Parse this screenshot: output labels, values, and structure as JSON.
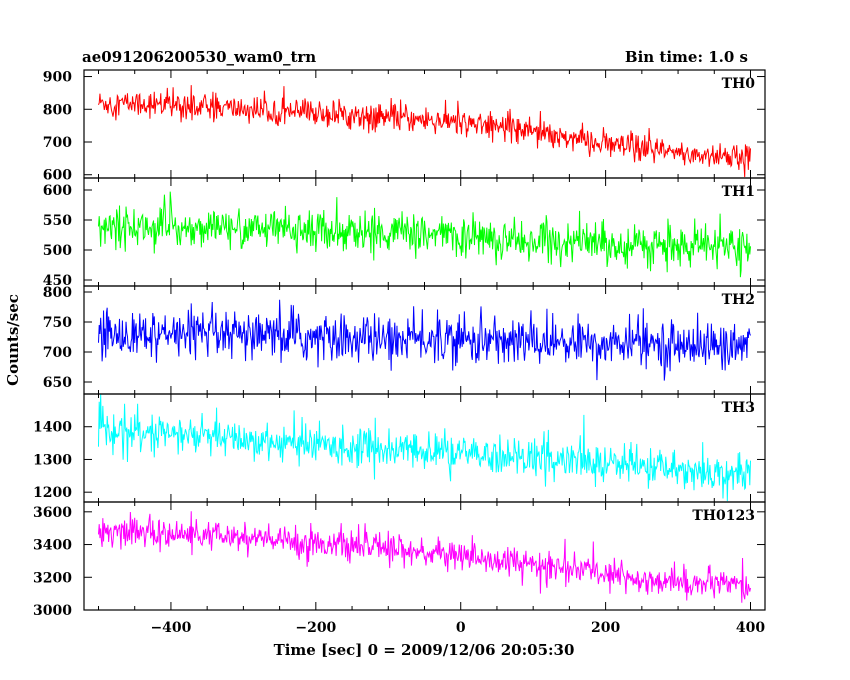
{
  "chart_data": {
    "type": "line",
    "title": "ae091206200530_wam0_trn",
    "subtitle": "Bin time: 1.0 s",
    "xlabel": "Time [sec] 0 = 2009/12/06 20:05:30",
    "ylabel": "Counts/sec",
    "xlim": [
      -520,
      420
    ],
    "x_ticks": [
      "−400",
      "−200",
      "0",
      "200",
      "400"
    ],
    "x_tick_values": [
      -400,
      -200,
      0,
      200,
      400
    ],
    "x_range_data": [
      -500,
      400
    ],
    "bin_time": 1.0,
    "series": [
      {
        "name": "TH0",
        "color": "#ff0000",
        "ylim": [
          590,
          920
        ],
        "yticks": [
          600,
          700,
          800,
          900
        ],
        "trend": [
          [
            -500,
            820
          ],
          [
            -400,
            815
          ],
          [
            -300,
            800
          ],
          [
            -200,
            790
          ],
          [
            -100,
            775
          ],
          [
            0,
            760
          ],
          [
            100,
            740
          ],
          [
            200,
            690
          ],
          [
            300,
            665
          ],
          [
            400,
            650
          ]
        ],
        "noise": 25,
        "spikes": 50
      },
      {
        "name": "TH1",
        "color": "#00ff00",
        "ylim": [
          440,
          620
        ],
        "yticks": [
          450,
          500,
          550,
          600
        ],
        "trend": [
          [
            -500,
            540
          ],
          [
            -300,
            535
          ],
          [
            -100,
            530
          ],
          [
            100,
            515
          ],
          [
            300,
            505
          ],
          [
            400,
            505
          ]
        ],
        "noise": 20,
        "spikes": 40
      },
      {
        "name": "TH2",
        "color": "#0000ff",
        "ylim": [
          630,
          810
        ],
        "yticks": [
          650,
          700,
          750,
          800
        ],
        "trend": [
          [
            -500,
            730
          ],
          [
            -300,
            725
          ],
          [
            -100,
            722
          ],
          [
            100,
            718
          ],
          [
            300,
            712
          ],
          [
            400,
            708
          ]
        ],
        "noise": 25,
        "spikes": 40
      },
      {
        "name": "TH3",
        "color": "#00ffff",
        "ylim": [
          1170,
          1500
        ],
        "yticks": [
          1200,
          1300,
          1400
        ],
        "trend": [
          [
            -500,
            1395
          ],
          [
            -300,
            1360
          ],
          [
            -100,
            1330
          ],
          [
            100,
            1305
          ],
          [
            300,
            1270
          ],
          [
            400,
            1255
          ]
        ],
        "noise": 35,
        "spikes": 60
      },
      {
        "name": "TH0123",
        "color": "#ff00ff",
        "ylim": [
          3000,
          3660
        ],
        "yticks": [
          3000,
          3200,
          3400,
          3600
        ],
        "trend": [
          [
            -500,
            3490
          ],
          [
            -300,
            3440
          ],
          [
            -100,
            3380
          ],
          [
            0,
            3330
          ],
          [
            100,
            3280
          ],
          [
            200,
            3220
          ],
          [
            300,
            3170
          ],
          [
            400,
            3140
          ]
        ],
        "noise": 55,
        "spikes": 90
      }
    ]
  }
}
